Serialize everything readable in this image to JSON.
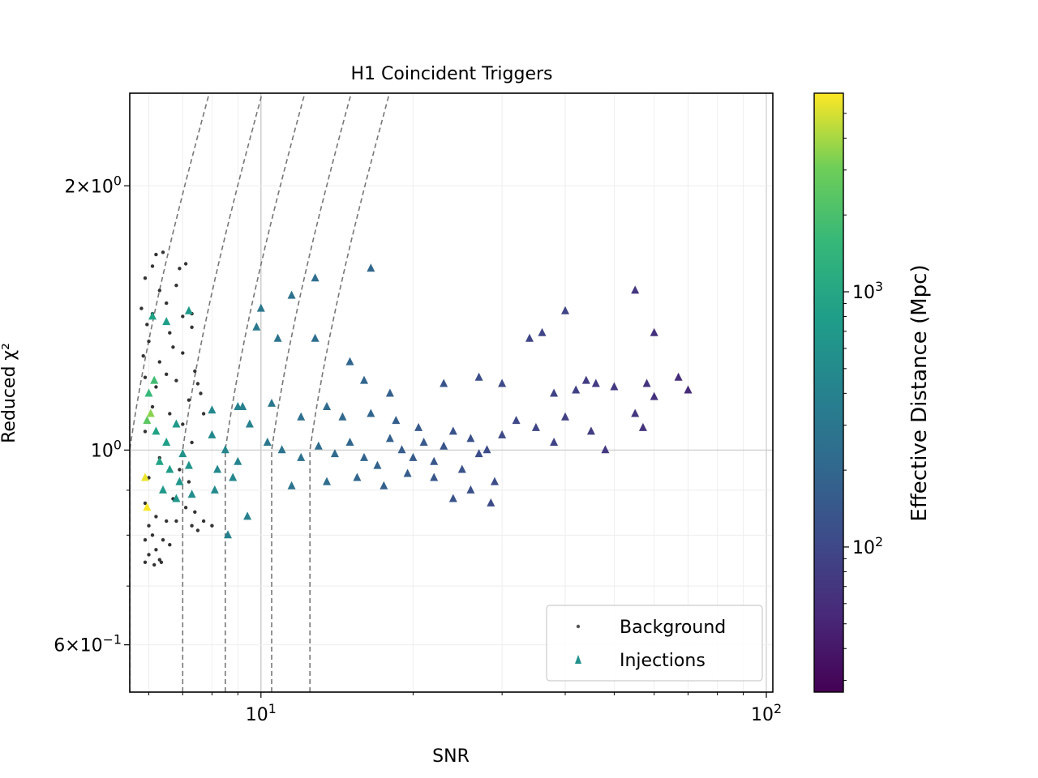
{
  "chart_data": {
    "type": "scatter",
    "title": "H1 Coincident Triggers",
    "xlabel": "SNR",
    "ylabel": "Reduced χ²",
    "xscale": "log",
    "yscale": "log",
    "xlim": [
      5.5,
      103
    ],
    "ylim": [
      0.53,
      2.55
    ],
    "grid": true,
    "x_ticks": [
      {
        "value": 10,
        "base": "10",
        "exp": "1"
      },
      {
        "value": 100,
        "base": "10",
        "exp": "2"
      }
    ],
    "y_ticks": [
      {
        "value": 0.6,
        "mant": "6",
        "base": "10",
        "exp": "−1"
      },
      {
        "value": 1.0,
        "mant": "",
        "base": "10",
        "exp": "0"
      },
      {
        "value": 2.0,
        "mant": "2",
        "base": "10",
        "exp": "0"
      }
    ],
    "legend": {
      "position": "bottom-right",
      "entries": [
        {
          "label": "Background",
          "marker": "dot",
          "color": "#555555"
        },
        {
          "label": "Injections",
          "marker": "triangle",
          "color": "#21918c"
        }
      ]
    },
    "colorbar": {
      "label": "Effective Distance (Mpc)",
      "scale": "log",
      "range": [
        27,
        6000
      ],
      "colormap": "viridis",
      "ticks": [
        {
          "value": 100,
          "base": "10",
          "exp": "2"
        },
        {
          "value": 1000,
          "base": "10",
          "exp": "3"
        }
      ]
    },
    "contours": {
      "style": "dashed",
      "color": "#777777",
      "snr_thresholds": [
        5.5,
        7.0,
        8.5,
        10.5,
        12.5
      ]
    },
    "series": [
      {
        "name": "Background",
        "marker": "dot",
        "color": "#333333",
        "points": [
          [
            6.2,
            1.67
          ],
          [
            6.4,
            1.68
          ],
          [
            6.1,
            1.62
          ],
          [
            6.9,
            1.61
          ],
          [
            7.1,
            1.63
          ],
          [
            5.9,
            1.57
          ],
          [
            6.3,
            1.52
          ],
          [
            6.8,
            1.54
          ],
          [
            5.8,
            1.45
          ],
          [
            6.1,
            1.43
          ],
          [
            6.5,
            1.47
          ],
          [
            7.0,
            1.42
          ],
          [
            7.3,
            1.38
          ],
          [
            5.95,
            1.39
          ],
          [
            6.6,
            1.36
          ],
          [
            7.3,
            1.43
          ],
          [
            6.0,
            1.33
          ],
          [
            6.7,
            1.31
          ],
          [
            5.85,
            1.28
          ],
          [
            6.3,
            1.26
          ],
          [
            7.0,
            1.29
          ],
          [
            7.4,
            1.23
          ],
          [
            7.5,
            1.19
          ],
          [
            7.6,
            1.16
          ],
          [
            7.2,
            1.14
          ],
          [
            7.7,
            1.1
          ],
          [
            5.9,
            1.21
          ],
          [
            6.2,
            1.18
          ],
          [
            6.5,
            1.22
          ],
          [
            6.8,
            1.2
          ],
          [
            6.1,
            1.12
          ],
          [
            6.6,
            1.1
          ],
          [
            5.9,
            1.05
          ],
          [
            7.0,
            1.07
          ],
          [
            7.3,
            1.02
          ],
          [
            6.3,
            0.98
          ],
          [
            6.9,
            0.95
          ],
          [
            7.2,
            0.92
          ],
          [
            6.0,
            0.93
          ],
          [
            6.4,
            0.9
          ],
          [
            6.7,
            0.88
          ],
          [
            5.9,
            0.87
          ],
          [
            7.1,
            0.86
          ],
          [
            7.4,
            0.85
          ],
          [
            6.2,
            0.84
          ],
          [
            6.5,
            0.83
          ],
          [
            6.0,
            0.82
          ],
          [
            6.8,
            0.83
          ],
          [
            7.3,
            0.82
          ],
          [
            6.1,
            0.8
          ],
          [
            6.4,
            0.79
          ],
          [
            5.9,
            0.79
          ],
          [
            6.6,
            0.78
          ],
          [
            6.2,
            0.77
          ],
          [
            6.0,
            0.76
          ],
          [
            6.3,
            0.75
          ],
          [
            5.9,
            0.745
          ],
          [
            6.15,
            0.74
          ],
          [
            6.35,
            0.745
          ],
          [
            7.7,
            0.83
          ],
          [
            8.0,
            0.82
          ],
          [
            7.5,
            0.81
          ]
        ]
      },
      {
        "name": "Injections",
        "marker": "triangle",
        "points": [
          [
            6.1,
            1.42,
            900
          ],
          [
            6.5,
            1.4,
            800
          ],
          [
            7.2,
            1.44,
            700
          ],
          [
            6.0,
            1.16,
            1600
          ],
          [
            6.15,
            1.2,
            1800
          ],
          [
            5.95,
            1.08,
            2500
          ],
          [
            6.05,
            1.1,
            3500
          ],
          [
            5.9,
            0.93,
            5500
          ],
          [
            5.95,
            0.86,
            6000
          ],
          [
            6.2,
            1.05,
            900
          ],
          [
            6.5,
            1.02,
            800
          ],
          [
            6.8,
            1.07,
            700
          ],
          [
            7.0,
            0.99,
            600
          ],
          [
            6.3,
            0.97,
            900
          ],
          [
            6.6,
            0.95,
            750
          ],
          [
            6.9,
            0.92,
            650
          ],
          [
            7.2,
            0.96,
            600
          ],
          [
            6.4,
            0.9,
            700
          ],
          [
            6.8,
            0.88,
            650
          ],
          [
            7.3,
            0.89,
            550
          ],
          [
            8.0,
            1.04,
            480
          ],
          [
            8.5,
            1.0,
            450
          ],
          [
            9.0,
            0.97,
            420
          ],
          [
            9.5,
            1.07,
            400
          ],
          [
            8.2,
            0.95,
            470
          ],
          [
            8.8,
            0.93,
            440
          ],
          [
            8.6,
            0.8,
            400
          ],
          [
            9.4,
            0.84,
            380
          ],
          [
            8.1,
            0.9,
            500
          ],
          [
            9.2,
            1.12,
            390
          ],
          [
            10.0,
            1.45,
            300
          ],
          [
            11.5,
            1.5,
            260
          ],
          [
            12.8,
            1.57,
            240
          ],
          [
            16.5,
            1.61,
            200
          ],
          [
            9.8,
            1.38,
            320
          ],
          [
            10.8,
            1.34,
            280
          ],
          [
            12.8,
            1.34,
            240
          ],
          [
            15.0,
            1.26,
            200
          ],
          [
            16.0,
            1.2,
            190
          ],
          [
            18.0,
            1.16,
            170
          ],
          [
            10.3,
            1.02,
            300
          ],
          [
            11.0,
            1.0,
            280
          ],
          [
            12.0,
            0.98,
            260
          ],
          [
            13.0,
            1.01,
            240
          ],
          [
            14.0,
            0.99,
            220
          ],
          [
            15.0,
            1.02,
            200
          ],
          [
            16.0,
            0.98,
            190
          ],
          [
            17.0,
            0.96,
            180
          ],
          [
            18.0,
            1.03,
            170
          ],
          [
            19.0,
            1.0,
            160
          ],
          [
            20.0,
            0.98,
            150
          ],
          [
            21.0,
            1.02,
            145
          ],
          [
            22.0,
            0.97,
            140
          ],
          [
            23.0,
            1.01,
            135
          ],
          [
            24.0,
            1.05,
            130
          ],
          [
            25.0,
            0.95,
            125
          ],
          [
            26.0,
            1.03,
            120
          ],
          [
            27.0,
            0.99,
            115
          ],
          [
            28.0,
            1.0,
            110
          ],
          [
            29.0,
            0.92,
            110
          ],
          [
            30.0,
            1.04,
            105
          ],
          [
            32.0,
            1.08,
            100
          ],
          [
            35.0,
            1.06,
            95
          ],
          [
            38.0,
            1.02,
            90
          ],
          [
            40.0,
            1.09,
            85
          ],
          [
            45.0,
            1.05,
            80
          ],
          [
            48.0,
            1.0,
            75
          ],
          [
            11.5,
            0.91,
            270
          ],
          [
            13.5,
            0.92,
            240
          ],
          [
            15.5,
            0.93,
            200
          ],
          [
            17.5,
            0.91,
            175
          ],
          [
            19.5,
            0.94,
            160
          ],
          [
            22.0,
            0.93,
            140
          ],
          [
            26.0,
            0.9,
            120
          ],
          [
            28.5,
            0.87,
            110
          ],
          [
            24.0,
            0.88,
            130
          ],
          [
            23.0,
            1.19,
            130
          ],
          [
            27.0,
            1.21,
            115
          ],
          [
            30.0,
            1.19,
            105
          ],
          [
            34.0,
            1.34,
            95
          ],
          [
            40.0,
            1.44,
            90
          ],
          [
            36.0,
            1.36,
            95
          ],
          [
            55.0,
            1.52,
            70
          ],
          [
            60.0,
            1.36,
            65
          ],
          [
            38.0,
            1.16,
            90
          ],
          [
            42.0,
            1.17,
            85
          ],
          [
            44.0,
            1.2,
            80
          ],
          [
            46.0,
            1.19,
            78
          ],
          [
            50.0,
            1.18,
            75
          ],
          [
            58.0,
            1.19,
            68
          ],
          [
            67.0,
            1.21,
            60
          ],
          [
            70.0,
            1.17,
            58
          ],
          [
            60.0,
            1.15,
            64
          ],
          [
            55.0,
            1.1,
            70
          ],
          [
            57.0,
            1.06,
            68
          ],
          [
            12.0,
            1.09,
            250
          ],
          [
            13.5,
            1.12,
            230
          ],
          [
            14.5,
            1.09,
            210
          ],
          [
            16.5,
            1.1,
            190
          ],
          [
            18.5,
            1.08,
            165
          ],
          [
            20.5,
            1.06,
            150
          ],
          [
            10.5,
            1.13,
            300
          ],
          [
            9.0,
            1.12,
            400
          ],
          [
            8.0,
            1.11,
            460
          ]
        ]
      }
    ]
  }
}
